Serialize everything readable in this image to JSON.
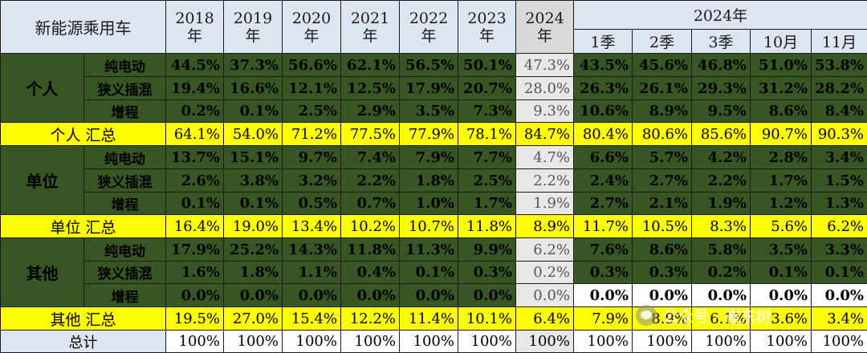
{
  "header": {
    "title": "新能源乘用车",
    "years": [
      "2018\n年",
      "2019\n年",
      "2020\n年",
      "2021\n年",
      "2022\n年",
      "2023\n年",
      "2024\n年"
    ],
    "group_2024": "2024年",
    "sub_2024": [
      "1季",
      "2季",
      "3季",
      "10月",
      "11月"
    ]
  },
  "rows": [
    {
      "group": "个人",
      "sub": "纯电动",
      "values": [
        "44.5%",
        "37.3%",
        "56.6%",
        "62.1%",
        "56.5%",
        "50.1%",
        "47.3%",
        "43.5%",
        "45.6%",
        "46.8%",
        "51.0%",
        "53.8%"
      ]
    },
    {
      "group": "",
      "sub": "狭义插混",
      "values": [
        "19.4%",
        "16.6%",
        "12.1%",
        "12.5%",
        "17.9%",
        "20.7%",
        "28.0%",
        "26.3%",
        "26.1%",
        "29.3%",
        "31.2%",
        "28.2%"
      ]
    },
    {
      "group": "",
      "sub": "增程",
      "values": [
        "0.2%",
        "0.1%",
        "2.5%",
        "2.9%",
        "3.5%",
        "7.3%",
        "9.3%",
        "10.6%",
        "8.9%",
        "9.5%",
        "8.6%",
        "8.4%"
      ]
    },
    {
      "summary": true,
      "label": "个人  汇总",
      "values": [
        "64.1%",
        "54.0%",
        "71.2%",
        "77.5%",
        "77.9%",
        "78.1%",
        "84.7%",
        "80.4%",
        "80.6%",
        "85.6%",
        "90.7%",
        "90.3%"
      ]
    },
    {
      "group": "单位",
      "sub": "纯电动",
      "values": [
        "13.7%",
        "15.1%",
        "9.7%",
        "7.4%",
        "7.9%",
        "7.7%",
        "4.7%",
        "6.6%",
        "5.7%",
        "4.2%",
        "2.8%",
        "3.4%"
      ]
    },
    {
      "group": "",
      "sub": "狭义插混",
      "values": [
        "2.6%",
        "3.8%",
        "3.2%",
        "2.2%",
        "1.8%",
        "2.5%",
        "2.2%",
        "2.4%",
        "2.7%",
        "2.2%",
        "1.7%",
        "1.5%"
      ]
    },
    {
      "group": "",
      "sub": "增程",
      "values": [
        "0.1%",
        "0.1%",
        "0.5%",
        "0.7%",
        "1.0%",
        "1.7%",
        "1.9%",
        "2.7%",
        "2.1%",
        "1.9%",
        "1.2%",
        "1.3%"
      ]
    },
    {
      "summary": true,
      "label": "单位  汇总",
      "values": [
        "16.4%",
        "19.0%",
        "13.4%",
        "10.2%",
        "10.7%",
        "11.8%",
        "8.9%",
        "11.7%",
        "10.5%",
        "8.3%",
        "5.6%",
        "6.2%"
      ]
    },
    {
      "group": "其他",
      "sub": "纯电动",
      "values": [
        "17.9%",
        "25.2%",
        "14.3%",
        "11.8%",
        "11.3%",
        "9.9%",
        "6.2%",
        "7.6%",
        "8.6%",
        "5.8%",
        "3.5%",
        "3.3%"
      ]
    },
    {
      "group": "",
      "sub": "狭义插混",
      "values": [
        "1.6%",
        "1.8%",
        "1.1%",
        "0.4%",
        "0.1%",
        "0.3%",
        "0.2%",
        "0.3%",
        "0.3%",
        "0.2%",
        "0.1%",
        "0.1%"
      ]
    },
    {
      "group": "",
      "sub": "增程",
      "values": [
        "0.0%",
        "0.0%",
        "0.0%",
        "0.0%",
        "0.0%",
        "0.0%",
        "0.0%",
        "0.0%",
        "0.0%",
        "0.0%",
        "0.0%",
        "0.0%"
      ]
    },
    {
      "summary": true,
      "label": "其他  汇总",
      "values": [
        "19.5%",
        "27.0%",
        "15.4%",
        "12.2%",
        "11.4%",
        "10.1%",
        "6.4%",
        "7.9%",
        "8.9%",
        "6.1%",
        "3.6%",
        "3.4%"
      ]
    },
    {
      "total": true,
      "label": "总计",
      "values": [
        "100%",
        "100%",
        "100%",
        "100%",
        "100%",
        "100%",
        "100%",
        "100%",
        "100%",
        "100%",
        "100%",
        "100%"
      ]
    }
  ],
  "watermark": {
    "text": "公众号 · 崔东树",
    "icon": "wechat-icon"
  }
}
